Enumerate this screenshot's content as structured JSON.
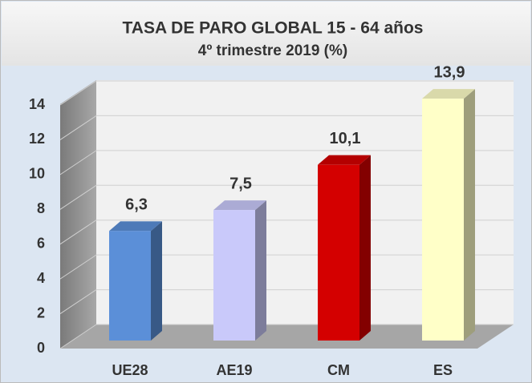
{
  "chart_data": {
    "type": "bar3d",
    "title": "TASA DE PARO GLOBAL 15 - 64  años",
    "subtitle": "4º trimestre 2019 (%)",
    "categories": [
      "UE28",
      "AE19",
      "CM",
      "ES"
    ],
    "values": [
      6.3,
      7.5,
      10.1,
      13.9
    ],
    "value_labels": [
      "6,3",
      "7,5",
      "10,1",
      "13,9"
    ],
    "colors": [
      "#5b8fd8",
      "#c9c9fa",
      "#d40000",
      "#ffffc8"
    ],
    "ylim": [
      0,
      14
    ],
    "yticks": [
      0,
      2,
      4,
      6,
      8,
      10,
      12,
      14
    ],
    "grid": true
  }
}
